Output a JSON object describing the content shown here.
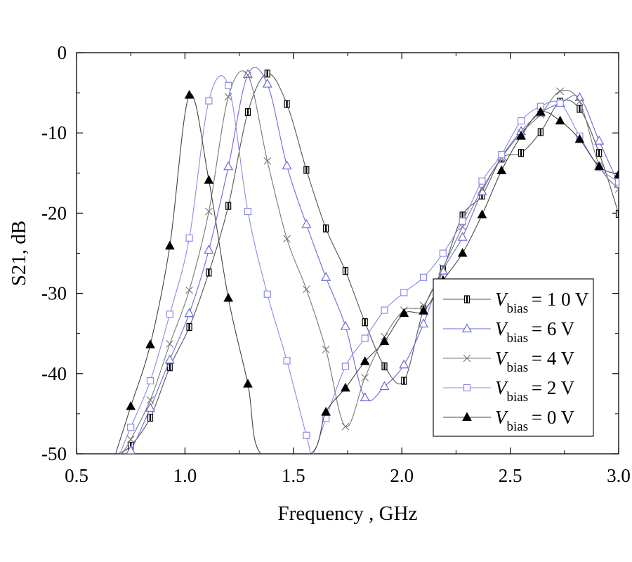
{
  "chart_data": {
    "type": "line",
    "title": "",
    "xlabel": "Frequency , GHz",
    "ylabel": "S21, dB",
    "xlim": [
      0.5,
      3.0
    ],
    "ylim": [
      -50,
      0
    ],
    "x_ticks": [
      0.5,
      1.0,
      1.5,
      2.0,
      2.5,
      3.0
    ],
    "x_tick_labels": [
      "0.5",
      "1.0",
      "1.5",
      "2.0",
      "2.5",
      "3.0"
    ],
    "y_ticks": [
      0,
      -10,
      -20,
      -30,
      -40,
      -50
    ],
    "y_tick_labels": [
      "0",
      "-10",
      "-20",
      "-30",
      "-40",
      "-50"
    ],
    "grid": false,
    "legend_position": "bottom-right",
    "series": [
      {
        "name_var": "V",
        "name_sub": "bias",
        "name_value": "= 1 0  V",
        "marker": "bar-square",
        "color": "#555555",
        "x": [
          0.69,
          0.75,
          0.84,
          0.93,
          1.02,
          1.11,
          1.2,
          1.29,
          1.38,
          1.47,
          1.56,
          1.65,
          1.74,
          1.83,
          1.92,
          2.01,
          2.1,
          2.19,
          2.28,
          2.37,
          2.46,
          2.55,
          2.64,
          2.73,
          2.82,
          2.91,
          3.0
        ],
        "y": [
          -50.0,
          -49.0,
          -45.5,
          -39.2,
          -34.2,
          -27.4,
          -19.1,
          -7.4,
          -2.6,
          -6.4,
          -14.6,
          -21.9,
          -27.2,
          -33.6,
          -39.1,
          -40.9,
          -32.0,
          -27.0,
          -20.3,
          -17.8,
          -13.2,
          -12.5,
          -9.9,
          -6.1,
          -7.0,
          -12.5,
          -20.1
        ]
      },
      {
        "name_var": "V",
        "name_sub": "bias",
        "name_value": "= 6  V",
        "marker": "triangle-open",
        "color": "#6a6adc",
        "x": [
          0.72,
          0.75,
          0.84,
          0.93,
          1.02,
          1.11,
          1.2,
          1.29,
          1.38,
          1.47,
          1.56,
          1.65,
          1.74,
          1.83,
          1.92,
          2.01,
          2.1,
          2.19,
          2.28,
          2.37,
          2.46,
          2.55,
          2.64,
          2.73,
          2.82,
          2.91,
          3.0
        ],
        "y": [
          -50.0,
          -49.6,
          -44.3,
          -38.3,
          -32.5,
          -24.6,
          -14.2,
          -2.7,
          -3.9,
          -14.1,
          -21.4,
          -28.0,
          -34.1,
          -43.0,
          -41.6,
          -38.9,
          -33.8,
          -27.2,
          -23.0,
          -17.3,
          -13.0,
          -9.8,
          -7.5,
          -6.3,
          -5.6,
          -11.0,
          -16.4
        ]
      },
      {
        "name_var": "V",
        "name_sub": "bias",
        "name_value": "= 4  V",
        "marker": "cross",
        "color": "#777777",
        "x": [
          0.71,
          0.75,
          0.84,
          0.93,
          1.02,
          1.11,
          1.2,
          1.29,
          1.38,
          1.47,
          1.56,
          1.65,
          1.74,
          1.83,
          1.92,
          2.01,
          2.1,
          2.19,
          2.28,
          2.37,
          2.46,
          2.55,
          2.64,
          2.73,
          2.82,
          2.91,
          3.0
        ],
        "y": [
          -50.0,
          -48.2,
          -43.3,
          -36.3,
          -29.6,
          -19.8,
          -5.5,
          -2.8,
          -13.5,
          -23.2,
          -29.5,
          -37.0,
          -46.6,
          -40.5,
          -35.4,
          -32.1,
          -31.5,
          -26.8,
          -21.7,
          -17.0,
          -13.1,
          -10.0,
          -7.7,
          -4.8,
          -6.1,
          -14.0,
          -17.0
        ]
      },
      {
        "name_var": "V",
        "name_sub": "bias",
        "name_value": "= 2  V",
        "marker": "square-open",
        "color": "#8a8ae8",
        "x": [
          0.7,
          0.75,
          0.84,
          0.93,
          1.02,
          1.11,
          1.2,
          1.29,
          1.38,
          1.47,
          1.56,
          1.59,
          1.65,
          1.74,
          1.83,
          1.92,
          2.01,
          2.1,
          2.19,
          2.28,
          2.37,
          2.46,
          2.55,
          2.64,
          2.73,
          2.82,
          2.91,
          3.0
        ],
        "y": [
          -50.0,
          -46.7,
          -40.9,
          -32.6,
          -23.1,
          -6.0,
          -4.1,
          -19.8,
          -30.1,
          -38.4,
          -47.7,
          -50.0,
          -45.6,
          -39.1,
          -35.6,
          -32.1,
          -29.9,
          -28.0,
          -25.0,
          -21.0,
          -16.0,
          -12.7,
          -8.5,
          -6.7,
          -6.3,
          -10.4,
          -14.3,
          -16.1
        ]
      },
      {
        "name_var": "V",
        "name_sub": "bias",
        "name_value": "= 0  V",
        "marker": "triangle-filled",
        "color": "#444444",
        "x": [
          0.68,
          0.75,
          0.84,
          0.93,
          1.02,
          1.11,
          1.2,
          1.29,
          1.35,
          1.58,
          1.65,
          1.74,
          1.83,
          1.92,
          2.01,
          2.1,
          2.19,
          2.28,
          2.37,
          2.46,
          2.55,
          2.64,
          2.73,
          2.82,
          2.91,
          3.0
        ],
        "y": [
          -50.0,
          -44.1,
          -36.4,
          -24.1,
          -5.3,
          -15.9,
          -30.6,
          -41.3,
          -50.0,
          -50.0,
          -44.8,
          -41.8,
          -38.5,
          -36.0,
          -32.5,
          -32.2,
          -28.4,
          -25.0,
          -20.2,
          -14.7,
          -10.4,
          -7.4,
          -8.5,
          -10.8,
          -14.2,
          -15.2
        ]
      }
    ]
  }
}
